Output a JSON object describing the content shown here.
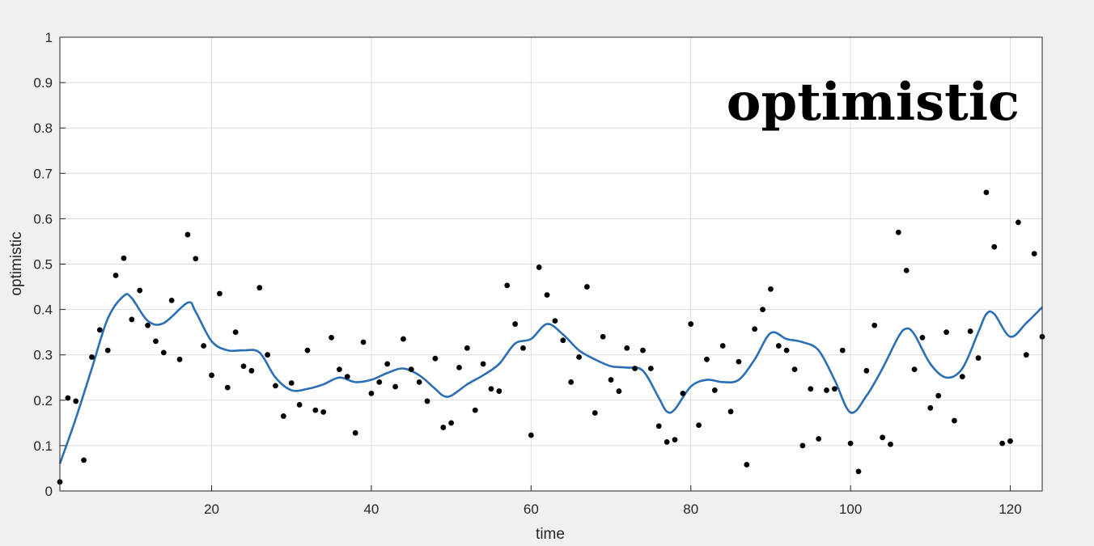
{
  "chart_data": {
    "type": "scatter",
    "title": "optimistic",
    "xlabel": "time",
    "ylabel": "optimistic",
    "xlim": [
      1,
      124
    ],
    "ylim": [
      0,
      1
    ],
    "x_ticks": [
      20,
      40,
      60,
      80,
      100,
      120
    ],
    "y_ticks": [
      0,
      0.1,
      0.2,
      0.3,
      0.4,
      0.5,
      0.6,
      0.7,
      0.8,
      0.9,
      1
    ],
    "y_tick_labels": [
      "0",
      "0.1",
      "0.2",
      "0.3",
      "0.4",
      "0.5",
      "0.6",
      "0.7",
      "0.8",
      "0.9",
      "1"
    ],
    "grid": true,
    "colors": {
      "points": "#000000",
      "line": "#2a6fb5",
      "grid": "#dcdcdc",
      "axes": "#262626",
      "plot_bg": "#ffffff",
      "figure_bg": "#f0f0f0"
    },
    "series": [
      {
        "kind": "points",
        "x": [
          1,
          2,
          3,
          4,
          5,
          6,
          7,
          8,
          9,
          10,
          11,
          12,
          13,
          14,
          15,
          16,
          17,
          18,
          19,
          20,
          21,
          22,
          23,
          24,
          25,
          26,
          27,
          28,
          29,
          30,
          31,
          32,
          33,
          34,
          35,
          36,
          37,
          38,
          39,
          40,
          41,
          42,
          43,
          44,
          45,
          46,
          47,
          48,
          49,
          50,
          51,
          52,
          53,
          54,
          55,
          56,
          57,
          58,
          59,
          60,
          61,
          62,
          63,
          64,
          65,
          66,
          67,
          68,
          69,
          70,
          71,
          72,
          73,
          74,
          75,
          76,
          77,
          78,
          79,
          80,
          81,
          82,
          83,
          84,
          85,
          86,
          87,
          88,
          89,
          90,
          91,
          92,
          93,
          94,
          95,
          96,
          97,
          98,
          99,
          100,
          101,
          102,
          103,
          104,
          105,
          106,
          107,
          108,
          109,
          110,
          111,
          112,
          113,
          114,
          115,
          116,
          117,
          118,
          119,
          120,
          121,
          122,
          123,
          124
        ],
        "y": [
          0.02,
          0.205,
          0.198,
          0.068,
          0.295,
          0.355,
          0.31,
          0.475,
          0.513,
          0.378,
          0.442,
          0.365,
          0.33,
          0.305,
          0.42,
          0.29,
          0.565,
          0.512,
          0.32,
          0.255,
          0.435,
          0.228,
          0.35,
          0.275,
          0.265,
          0.448,
          0.3,
          0.232,
          0.165,
          0.238,
          0.19,
          0.31,
          0.178,
          0.174,
          0.338,
          0.268,
          0.252,
          0.128,
          0.328,
          0.215,
          0.24,
          0.28,
          0.23,
          0.335,
          0.268,
          0.24,
          0.198,
          0.292,
          0.14,
          0.15,
          0.272,
          0.315,
          0.178,
          0.28,
          0.225,
          0.22,
          0.453,
          0.368,
          0.315,
          0.123,
          0.493,
          0.432,
          0.375,
          0.332,
          0.24,
          0.295,
          0.45,
          0.172,
          0.34,
          0.245,
          0.22,
          0.315,
          0.27,
          0.31,
          0.27,
          0.143,
          0.108,
          0.113,
          0.215,
          0.368,
          0.145,
          0.29,
          0.222,
          0.32,
          0.175,
          0.285,
          0.058,
          0.357,
          0.4,
          0.445,
          0.32,
          0.31,
          0.268,
          0.1,
          0.225,
          0.115,
          0.222,
          0.225,
          0.31,
          0.105,
          0.043,
          0.265,
          0.365,
          0.118,
          0.103,
          0.57,
          0.486,
          0.268,
          0.338,
          0.183,
          0.21,
          0.35,
          0.155,
          0.252,
          0.352,
          0.293,
          0.658,
          0.538,
          0.105,
          0.11,
          0.592,
          0.3,
          0.523,
          0.34
        ]
      },
      {
        "kind": "smooth-line",
        "x": [
          1,
          3,
          5,
          7,
          9,
          10,
          12,
          14,
          17,
          18,
          20,
          22,
          24,
          26,
          28,
          30,
          32,
          34,
          36,
          38,
          40,
          42,
          44,
          46,
          48,
          49,
          50,
          52,
          54,
          56,
          58,
          60,
          62,
          64,
          66,
          68,
          70,
          72,
          74,
          76,
          77,
          78,
          80,
          82,
          84,
          86,
          88,
          90,
          92,
          94,
          96,
          98,
          100,
          102,
          104,
          106,
          107,
          108,
          110,
          112,
          114,
          116,
          117,
          118,
          120,
          122,
          124
        ],
        "y": [
          0.06,
          0.16,
          0.27,
          0.38,
          0.43,
          0.425,
          0.375,
          0.37,
          0.415,
          0.395,
          0.33,
          0.31,
          0.31,
          0.305,
          0.25,
          0.222,
          0.225,
          0.235,
          0.25,
          0.24,
          0.245,
          0.26,
          0.27,
          0.255,
          0.225,
          0.21,
          0.21,
          0.235,
          0.255,
          0.28,
          0.325,
          0.335,
          0.368,
          0.345,
          0.31,
          0.29,
          0.275,
          0.272,
          0.265,
          0.205,
          0.175,
          0.18,
          0.23,
          0.245,
          0.24,
          0.245,
          0.29,
          0.348,
          0.335,
          0.328,
          0.31,
          0.245,
          0.173,
          0.21,
          0.27,
          0.34,
          0.358,
          0.345,
          0.28,
          0.25,
          0.27,
          0.35,
          0.39,
          0.39,
          0.34,
          0.37,
          0.405
        ]
      }
    ]
  }
}
